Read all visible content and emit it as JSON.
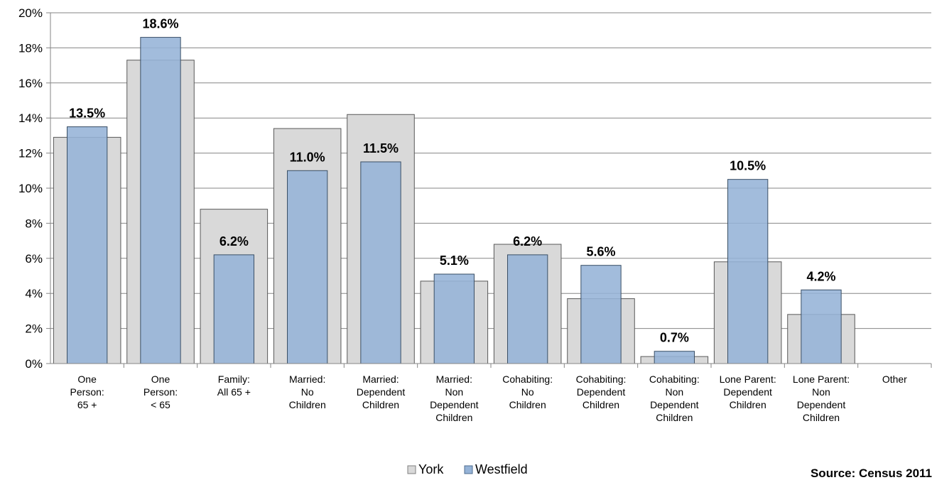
{
  "chart_data": {
    "type": "bar",
    "categories": [
      [
        "One",
        "Person:",
        "65 +"
      ],
      [
        "One",
        "Person:",
        "< 65"
      ],
      [
        "Family:",
        "All 65 +"
      ],
      [
        "Married:",
        "No",
        "Children"
      ],
      [
        "Married:",
        "Dependent",
        "Children"
      ],
      [
        "Married:",
        "Non",
        "Dependent",
        "Children"
      ],
      [
        "Cohabiting:",
        "No",
        "Children"
      ],
      [
        "Cohabiting:",
        "Dependent",
        "Children"
      ],
      [
        "Cohabiting:",
        "Non",
        "Dependent",
        "Children"
      ],
      [
        "Lone Parent:",
        "Dependent",
        "Children"
      ],
      [
        "Lone Parent:",
        "Non",
        "Dependent",
        "Children"
      ],
      [
        "Other"
      ]
    ],
    "series": [
      {
        "name": "York",
        "values": [
          12.9,
          17.3,
          8.8,
          13.4,
          14.2,
          4.7,
          6.8,
          3.7,
          0.4,
          5.8,
          2.8,
          0
        ],
        "color": "#d9d9d9"
      },
      {
        "name": "Westfield",
        "values": [
          13.5,
          18.6,
          6.2,
          11.0,
          11.5,
          5.1,
          6.2,
          5.6,
          0.7,
          10.5,
          4.2,
          0
        ],
        "color": "#95b3d7"
      }
    ],
    "data_labels": [
      "13.5%",
      "18.6%",
      "6.2%",
      "11.0%",
      "11.5%",
      "5.1%",
      "6.2%",
      "5.6%",
      "0.7%",
      "10.5%",
      "4.2%",
      ""
    ],
    "y_ticks": [
      "0%",
      "2%",
      "4%",
      "6%",
      "8%",
      "10%",
      "12%",
      "14%",
      "16%",
      "18%",
      "20%"
    ],
    "ylim": [
      0,
      20
    ],
    "grid": true,
    "legend_position": "bottom-center",
    "title": "",
    "xlabel": "",
    "ylabel": ""
  },
  "source_note": "Source: Census 2011"
}
